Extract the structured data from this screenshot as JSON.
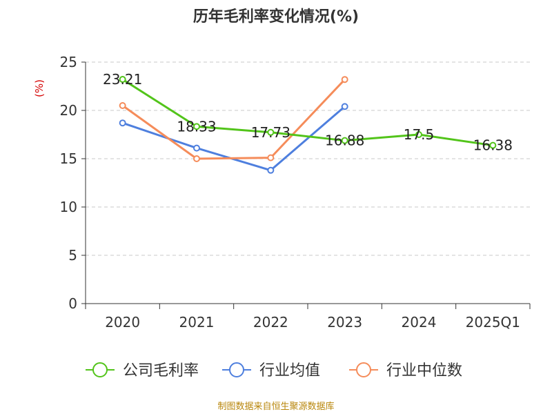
{
  "chart_data": {
    "type": "line",
    "title": "历年毛利率变化情况(%)",
    "ylabel": "(%)",
    "xlabel": "",
    "categories": [
      "2020",
      "2021",
      "2022",
      "2023",
      "2024",
      "2025Q1"
    ],
    "ylim": [
      0,
      25
    ],
    "yticks": [
      0,
      5,
      10,
      15,
      20,
      25
    ],
    "grid": true,
    "legend_position": "bottom",
    "series": [
      {
        "name": "公司毛利率",
        "color": "#52c41a",
        "values": [
          23.21,
          18.33,
          17.73,
          16.88,
          17.5,
          16.38
        ],
        "labels": [
          "23.21",
          "18.33",
          "17.73",
          "16.88",
          "17.5",
          "16.38"
        ]
      },
      {
        "name": "行业均值",
        "color": "#4e7fde",
        "values": [
          18.7,
          16.1,
          13.8,
          20.4,
          null,
          null
        ]
      },
      {
        "name": "行业中位数",
        "color": "#f58c5a",
        "values": [
          20.5,
          15.0,
          15.1,
          23.2,
          null,
          null
        ]
      }
    ]
  },
  "source_text": "制图数据来自恒生聚源数据库"
}
